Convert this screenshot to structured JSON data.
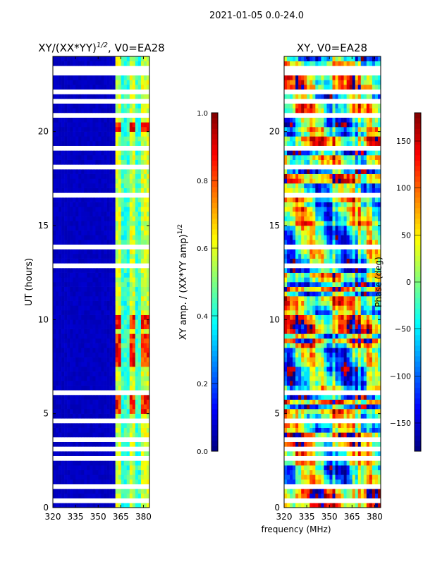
{
  "suptitle": "2021-01-05 0.0-24.0",
  "chart_data": [
    {
      "type": "heatmap",
      "title": "XY/(XX*YY)^{1/2}, V0=EA28",
      "title_main": "XY/(XX*YY)",
      "title_sup": "1/2",
      "title_tail": ", V0=EA28",
      "xlabel": "frequency (MHz)",
      "ylabel": "UT (hours)",
      "xlim": [
        320,
        384
      ],
      "ylim": [
        0,
        24
      ],
      "xticks": [
        "320",
        "335",
        "350",
        "365",
        "380"
      ],
      "xtick_values": [
        320,
        335,
        350,
        365,
        380
      ],
      "yticks": [
        "0",
        "5",
        "10",
        "15",
        "20"
      ],
      "ytick_values": [
        0,
        5,
        10,
        15,
        20
      ],
      "colormap": "jet",
      "colorbar": {
        "label_main": "XY amp. / (XX*YY amp)",
        "label_sup": "1/2",
        "range": [
          0.0,
          1.0
        ],
        "ticks": [
          "0.0",
          "0.2",
          "0.4",
          "0.6",
          "0.8",
          "1.0"
        ],
        "tick_values": [
          0.0,
          0.2,
          0.4,
          0.6,
          0.8,
          1.0
        ]
      },
      "background_level": 0.05,
      "active_band_mhz": [
        361,
        384
      ],
      "active_band_level": 0.35,
      "high_amplitude_hours": [
        [
          5.0,
          5.9
        ],
        [
          7.5,
          9.3
        ],
        [
          9.5,
          10.3
        ],
        [
          20.0,
          20.6
        ]
      ]
    },
    {
      "type": "heatmap",
      "title": "XY, V0=EA28",
      "xlim": [
        320,
        384
      ],
      "ylim": [
        0,
        24
      ],
      "xticks": [
        "320",
        "335",
        "350",
        "365",
        "380"
      ],
      "xtick_values": [
        320,
        335,
        350,
        365,
        380
      ],
      "yticks": [
        "0",
        "5",
        "10",
        "15",
        "20"
      ],
      "ytick_values": [
        0,
        5,
        10,
        15,
        20
      ],
      "colormap": "jet",
      "colorbar": {
        "label": "Phase (deg)",
        "range": [
          -180,
          180
        ],
        "ticks": [
          "−150",
          "−100",
          "−50",
          "0",
          "50",
          "100",
          "150"
        ],
        "tick_values": [
          -150,
          -100,
          -50,
          0,
          50,
          100,
          150
        ]
      }
    }
  ],
  "flagged_hours": [
    [
      0.3,
      0.4
    ],
    [
      1.1,
      1.2
    ],
    [
      1.9,
      2.0
    ],
    [
      2.6,
      2.7
    ],
    [
      3.1,
      3.2
    ],
    [
      3.5,
      3.8
    ],
    [
      4.6,
      4.7
    ],
    [
      5.9,
      6.3
    ],
    [
      7.2,
      7.3
    ],
    [
      7.9,
      8.0
    ],
    [
      9.2,
      9.35
    ],
    [
      11.9,
      12.1
    ],
    [
      12.5,
      12.6
    ],
    [
      12.8,
      12.9
    ],
    [
      13.2,
      13.3
    ],
    [
      13.8,
      13.9
    ],
    [
      14.5,
      14.6
    ],
    [
      16.5,
      16.7
    ],
    [
      17.4,
      17.5
    ],
    [
      18.1,
      18.2
    ],
    [
      19.1,
      19.2
    ],
    [
      20.8,
      20.9
    ],
    [
      21.6,
      21.7
    ],
    [
      22.1,
      22.2
    ],
    [
      22.9,
      23.5
    ],
    [
      23.7,
      23.8
    ]
  ]
}
